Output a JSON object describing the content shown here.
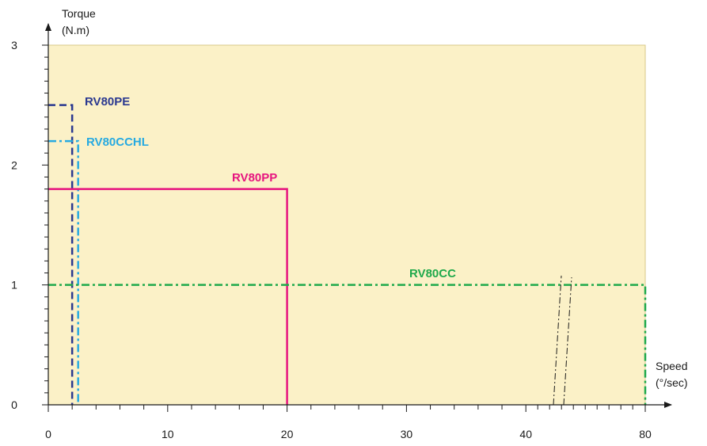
{
  "chart_data": {
    "type": "line",
    "y_axis": {
      "label_line1": "Torque",
      "label_line2": "(N.m)",
      "ticks": [
        0,
        1,
        2,
        3
      ],
      "ylim": [
        0,
        3
      ]
    },
    "x_axis": {
      "label_line1": "Speed",
      "label_line2": "(°/sec)",
      "tick_labels": [
        "0",
        "10",
        "20",
        "30",
        "40",
        "80"
      ],
      "tick_values": [
        0,
        10,
        20,
        30,
        40,
        80
      ],
      "axis_break": "between 40 and 80",
      "xlim": [
        0,
        80
      ]
    },
    "grid": false,
    "background": "#fbf1c7",
    "series": [
      {
        "name": "RV80PE",
        "color": "#2b3990",
        "dash": "dashed",
        "torque": 2.5,
        "max_speed": 2
      },
      {
        "name": "RV80CCHL",
        "color": "#27aae1",
        "dash": "dash-dot",
        "torque": 2.2,
        "max_speed": 2.5
      },
      {
        "name": "RV80PP",
        "color": "#e6157f",
        "dash": "solid",
        "torque": 1.8,
        "max_speed": 20
      },
      {
        "name": "RV80CC",
        "color": "#1fa94b",
        "dash": "dash-dot",
        "torque": 1.0,
        "max_speed": 80
      }
    ]
  }
}
